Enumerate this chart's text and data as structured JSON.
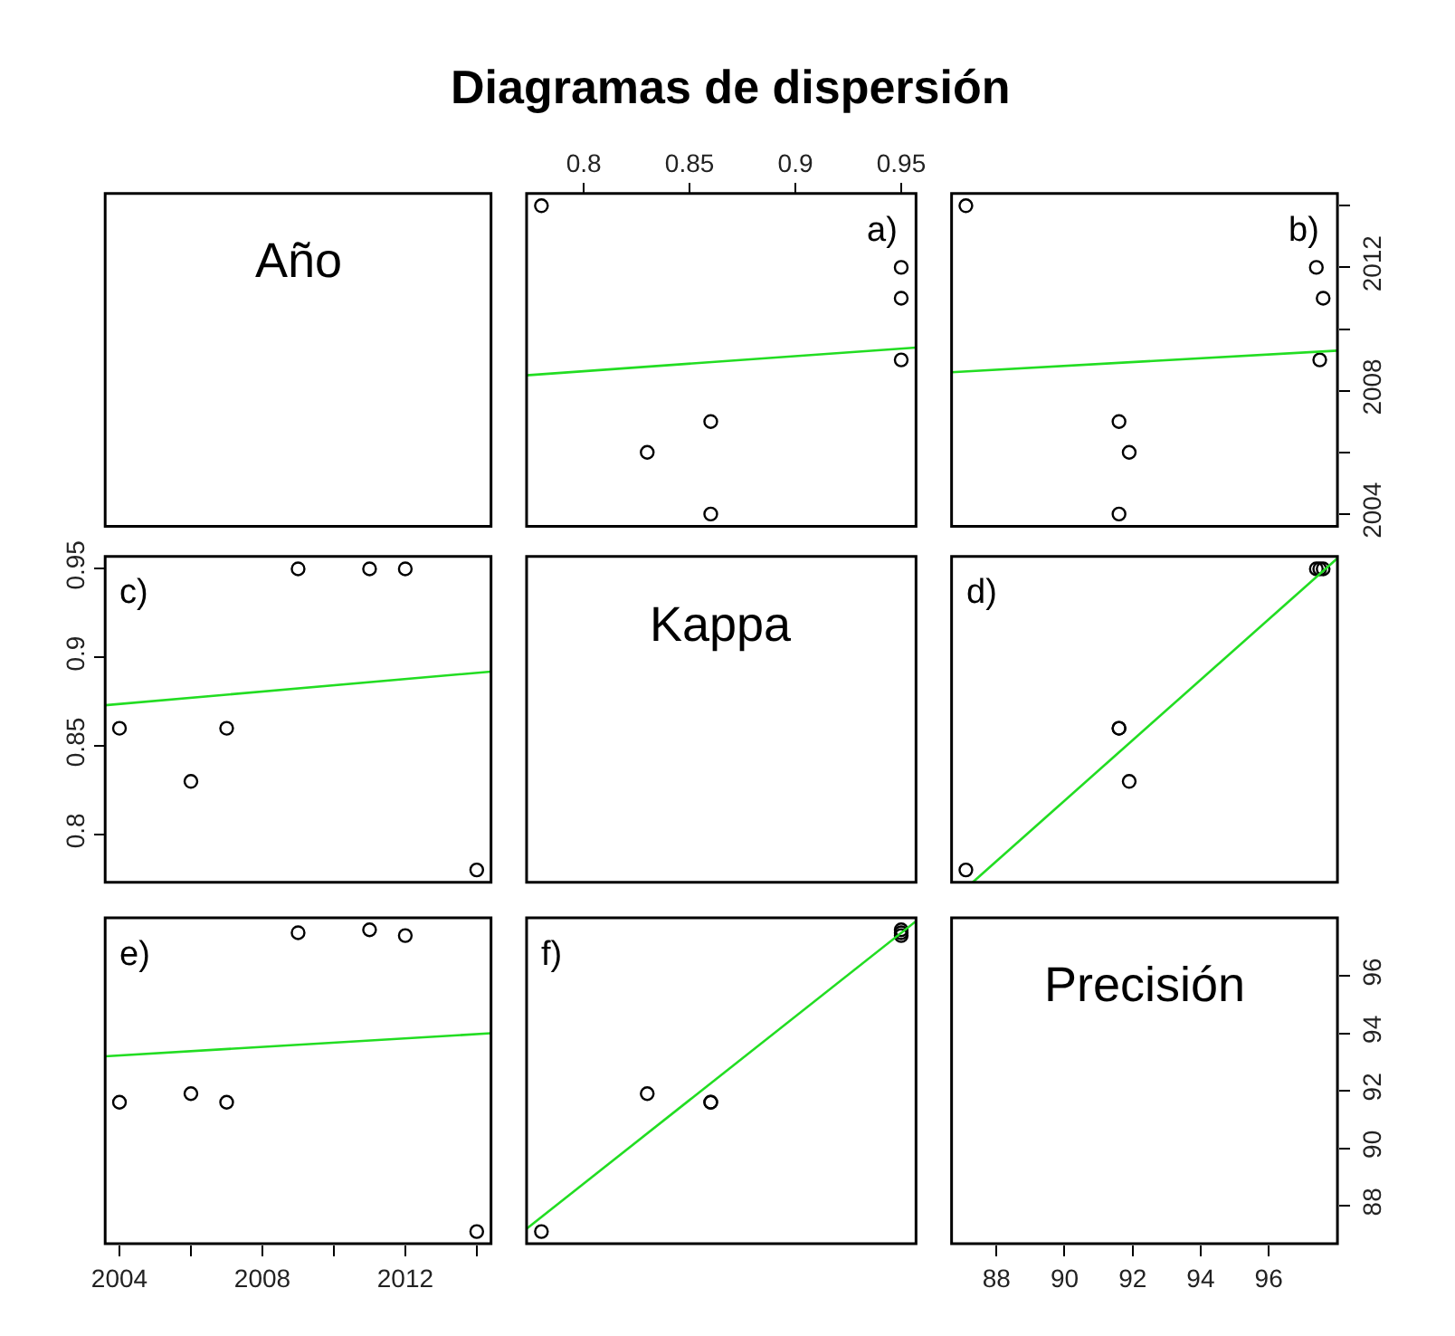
{
  "chart_data": [
    {
      "type": "other",
      "title": "Diagramas de dispersión"
    },
    {
      "type": "other",
      "title": "Año"
    },
    {
      "type": "scatter",
      "annotations": [
        "a)"
      ],
      "xlim": [
        0.773,
        0.957
      ],
      "ylim": [
        2003.6,
        2014.4
      ],
      "xticks": [
        0.8,
        0.85,
        0.9,
        0.95
      ],
      "tick_labels": "x",
      "series": [
        {
          "type": "scatter",
          "marker": "circle",
          "color": "#000000",
          "x": [
            0.86,
            0.83,
            0.86,
            0.95,
            0.95,
            0.95,
            0.78
          ],
          "values": [
            2004,
            2006,
            2007,
            2009,
            2011,
            2012,
            2014
          ]
        },
        {
          "type": "line",
          "line_style": "solid",
          "color": "#22dd22",
          "x": [
            0.773,
            0.957
          ],
          "values": [
            2008.5,
            2009.4
          ]
        }
      ]
    },
    {
      "type": "scatter",
      "annotations": [
        "b)"
      ],
      "xlim": [
        86.68,
        98.02
      ],
      "ylim": [
        2003.6,
        2014.4
      ],
      "yticks": [
        2004,
        {
          "value": 2006,
          "label": null
        },
        2008,
        {
          "value": 2010,
          "label": null
        },
        2012,
        {
          "value": 2014,
          "label": null
        }
      ],
      "tick_labels": "y",
      "series": [
        {
          "type": "scatter",
          "marker": "circle",
          "color": "#000000",
          "x": [
            91.6,
            91.9,
            91.6,
            97.5,
            97.6,
            97.4,
            87.1
          ],
          "values": [
            2004,
            2006,
            2007,
            2009,
            2011,
            2012,
            2014
          ]
        },
        {
          "type": "line",
          "line_style": "solid",
          "color": "#22dd22",
          "x": [
            86.68,
            98.02
          ],
          "values": [
            2008.6,
            2009.3
          ]
        }
      ]
    },
    {
      "type": "scatter",
      "annotations": [
        "c)"
      ],
      "xlim": [
        2003.6,
        2014.4
      ],
      "ylim": [
        0.773,
        0.957
      ],
      "yticks": [
        0.8,
        0.85,
        0.9,
        0.95
      ],
      "tick_labels": "y",
      "series": [
        {
          "type": "scatter",
          "marker": "circle",
          "color": "#000000",
          "x": [
            2004,
            2006,
            2007,
            2009,
            2011,
            2012,
            2014
          ],
          "values": [
            0.86,
            0.83,
            0.86,
            0.95,
            0.95,
            0.95,
            0.78
          ]
        },
        {
          "type": "line",
          "line_style": "solid",
          "color": "#22dd22",
          "x": [
            2003.6,
            2014.4
          ],
          "values": [
            0.873,
            0.892
          ]
        }
      ]
    },
    {
      "type": "other",
      "title": "Kappa"
    },
    {
      "type": "scatter",
      "annotations": [
        "d)"
      ],
      "xlim": [
        86.68,
        98.02
      ],
      "ylim": [
        0.773,
        0.957
      ],
      "tick_labels": false,
      "series": [
        {
          "type": "scatter",
          "marker": "circle",
          "color": "#000000",
          "x": [
            91.6,
            91.9,
            91.6,
            97.5,
            97.6,
            97.4,
            87.1
          ],
          "values": [
            0.86,
            0.83,
            0.86,
            0.95,
            0.95,
            0.95,
            0.78
          ]
        },
        {
          "type": "line",
          "line_style": "solid",
          "color": "#22dd22",
          "x": [
            87.3,
            98.02
          ],
          "values": [
            0.773,
            0.956
          ]
        }
      ]
    },
    {
      "type": "scatter",
      "annotations": [
        "e)"
      ],
      "xlim": [
        2003.6,
        2014.4
      ],
      "ylim": [
        86.68,
        98.02
      ],
      "xticks": [
        2004,
        {
          "value": 2006,
          "label": null
        },
        2008,
        {
          "value": 2010,
          "label": null
        },
        2012,
        {
          "value": 2014,
          "label": null
        }
      ],
      "tick_labels": "x",
      "series": [
        {
          "type": "scatter",
          "marker": "circle",
          "color": "#000000",
          "x": [
            2004,
            2006,
            2007,
            2009,
            2011,
            2012,
            2014
          ],
          "values": [
            91.6,
            91.9,
            91.6,
            97.5,
            97.6,
            97.4,
            87.1
          ]
        },
        {
          "type": "line",
          "line_style": "solid",
          "color": "#22dd22",
          "x": [
            2003.6,
            2014.4
          ],
          "values": [
            93.2,
            94.0
          ]
        }
      ]
    },
    {
      "type": "scatter",
      "annotations": [
        "f)"
      ],
      "xlim": [
        0.773,
        0.957
      ],
      "ylim": [
        86.68,
        98.02
      ],
      "tick_labels": false,
      "series": [
        {
          "type": "scatter",
          "marker": "circle",
          "color": "#000000",
          "x": [
            0.86,
            0.83,
            0.86,
            0.95,
            0.95,
            0.95,
            0.78
          ],
          "values": [
            91.6,
            91.9,
            91.6,
            97.5,
            97.6,
            97.4,
            87.1
          ]
        },
        {
          "type": "line",
          "line_style": "solid",
          "color": "#22dd22",
          "x": [
            0.773,
            0.957
          ],
          "values": [
            87.2,
            97.9
          ]
        }
      ]
    },
    {
      "type": "scatter",
      "title": "Precisión",
      "xlim": [
        86.68,
        98.02
      ],
      "ylim": [
        86.68,
        98.02
      ],
      "xticks": [
        88,
        90,
        92,
        94,
        96
      ],
      "yticks": [
        88,
        90,
        92,
        94,
        96
      ]
    }
  ]
}
